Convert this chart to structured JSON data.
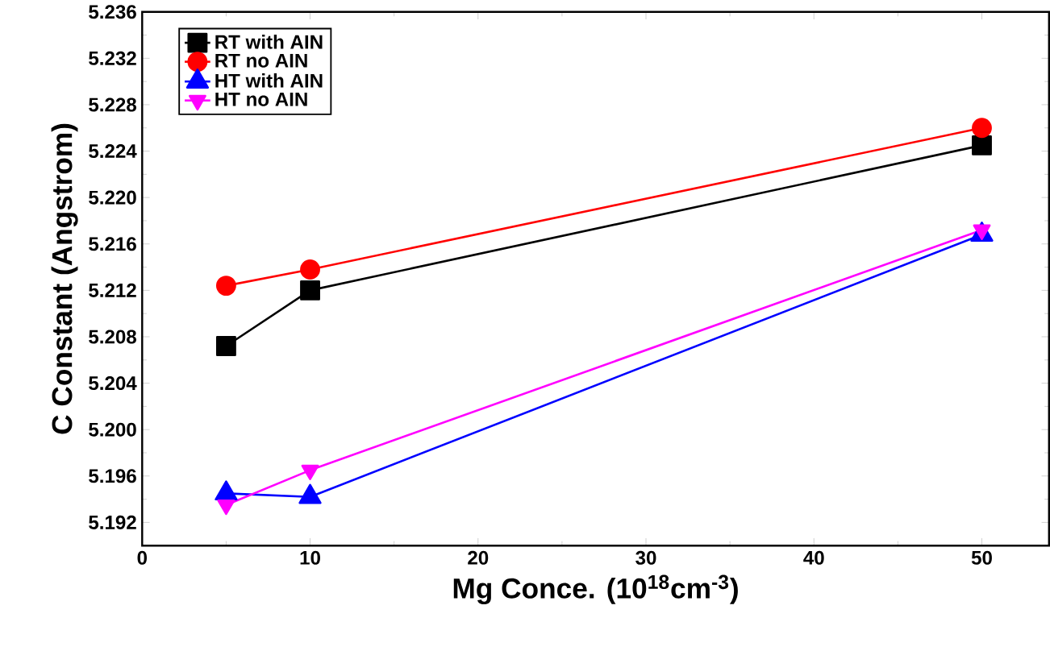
{
  "chart_data": {
    "type": "line",
    "xlabel": "Mg Conce. (10$^{18}$cm$^{-3}$)",
    "ylabel": "C Constant (Angstrom)",
    "x": [
      5,
      10,
      50
    ],
    "xlim": [
      0,
      54
    ],
    "xticks": [
      0,
      10,
      20,
      30,
      40,
      50
    ],
    "ylim": [
      5.19,
      5.236
    ],
    "yticks": [
      {
        "value": 5.192,
        "label": "5.192"
      },
      {
        "value": 5.196,
        "label": "5.196"
      },
      {
        "value": 5.2,
        "label": "5.200"
      },
      {
        "value": 5.204,
        "label": "5.204"
      },
      {
        "value": 5.208,
        "label": "5.208"
      },
      {
        "value": 5.212,
        "label": "5.212"
      },
      {
        "value": 5.216,
        "label": "5.216"
      },
      {
        "value": 5.22,
        "label": "5.220"
      },
      {
        "value": 5.224,
        "label": "5.224"
      },
      {
        "value": 5.228,
        "label": "5.228"
      },
      {
        "value": 5.232,
        "label": "5.232"
      },
      {
        "value": 5.236,
        "label": "5.236"
      }
    ],
    "legend": "top left",
    "grid": false,
    "series": [
      {
        "name": "RT with AIN",
        "color": "#000000",
        "marker": "square",
        "values": [
          5.2072,
          5.212,
          5.2245
        ]
      },
      {
        "name": "RT no AIN",
        "color": "#ff0000",
        "marker": "circle",
        "values": [
          5.2124,
          5.2138,
          5.226
        ]
      },
      {
        "name": "HT with AIN",
        "color": "#0000ff",
        "marker": "triangle",
        "values": [
          5.1945,
          5.1942,
          5.2168
        ]
      },
      {
        "name": "HT no AIN",
        "color": "#ff00ff",
        "marker": "triangle_down",
        "values": [
          5.1935,
          5.1965,
          5.2172
        ]
      }
    ]
  }
}
